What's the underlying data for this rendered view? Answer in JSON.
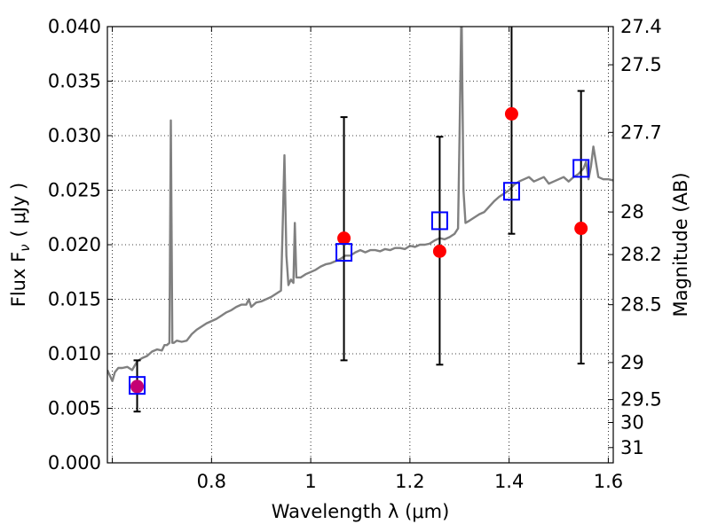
{
  "chart_data": {
    "type": "scatter",
    "xlabel": "Wavelength  λ (μm)",
    "ylabel": "Flux  F",
    "ylabel_sub": "ν",
    "ylabel_unit": "( μJy )",
    "y2label": "Magnitude (AB)",
    "xlim": [
      0.59,
      1.61
    ],
    "ylim": [
      0.0,
      0.04
    ],
    "grid": true,
    "x_ticks": [
      {
        "value": 0.6,
        "label": ""
      },
      {
        "value": 0.8,
        "label": "0.8"
      },
      {
        "value": 1.0,
        "label": "1"
      },
      {
        "value": 1.2,
        "label": "1.2"
      },
      {
        "value": 1.4,
        "label": "1.4"
      },
      {
        "value": 1.6,
        "label": "1.6"
      }
    ],
    "y_ticks": [
      {
        "value": 0.0,
        "label": "0.000"
      },
      {
        "value": 0.005,
        "label": "0.005"
      },
      {
        "value": 0.01,
        "label": "0.010"
      },
      {
        "value": 0.015,
        "label": "0.015"
      },
      {
        "value": 0.02,
        "label": "0.020"
      },
      {
        "value": 0.025,
        "label": "0.025"
      },
      {
        "value": 0.03,
        "label": "0.030"
      },
      {
        "value": 0.035,
        "label": "0.035"
      },
      {
        "value": 0.04,
        "label": "0.040"
      }
    ],
    "y2_ticks": [
      {
        "flux": 0.04,
        "label": "27.4"
      },
      {
        "flux": 0.0365,
        "label": "27.5"
      },
      {
        "flux": 0.0303,
        "label": "27.7"
      },
      {
        "flux": 0.023,
        "label": "28"
      },
      {
        "flux": 0.0191,
        "label": "28.2"
      },
      {
        "flux": 0.0145,
        "label": "28.5"
      },
      {
        "flux": 0.0092,
        "label": "29"
      },
      {
        "flux": 0.0058,
        "label": "29.5"
      },
      {
        "flux": 0.0037,
        "label": "30"
      },
      {
        "flux": 0.0014,
        "label": "31"
      }
    ],
    "series": [
      {
        "name": "model spectrum",
        "kind": "line",
        "color": "#808080",
        "x": [
          0.59,
          0.6,
          0.605,
          0.612,
          0.62,
          0.63,
          0.64,
          0.65,
          0.66,
          0.67,
          0.68,
          0.69,
          0.7,
          0.705,
          0.71,
          0.715,
          0.718,
          0.721,
          0.724,
          0.73,
          0.74,
          0.75,
          0.76,
          0.77,
          0.78,
          0.79,
          0.8,
          0.81,
          0.82,
          0.83,
          0.84,
          0.85,
          0.86,
          0.87,
          0.875,
          0.88,
          0.89,
          0.9,
          0.91,
          0.92,
          0.93,
          0.94,
          0.943,
          0.947,
          0.951,
          0.955,
          0.96,
          0.965,
          0.968,
          0.971,
          0.975,
          0.98,
          0.99,
          1.0,
          1.01,
          1.02,
          1.03,
          1.04,
          1.05,
          1.06,
          1.07,
          1.08,
          1.09,
          1.1,
          1.11,
          1.12,
          1.13,
          1.14,
          1.15,
          1.16,
          1.17,
          1.18,
          1.19,
          1.2,
          1.21,
          1.22,
          1.23,
          1.24,
          1.25,
          1.26,
          1.27,
          1.28,
          1.29,
          1.297,
          1.3,
          1.304,
          1.308,
          1.312,
          1.32,
          1.33,
          1.34,
          1.35,
          1.36,
          1.37,
          1.38,
          1.39,
          1.4,
          1.41,
          1.42,
          1.43,
          1.44,
          1.45,
          1.46,
          1.47,
          1.48,
          1.49,
          1.5,
          1.51,
          1.52,
          1.53,
          1.54,
          1.55,
          1.555,
          1.56,
          1.565,
          1.57,
          1.58,
          1.59,
          1.6,
          1.61
        ],
        "y": [
          0.0085,
          0.0075,
          0.0083,
          0.0087,
          0.0087,
          0.0088,
          0.0085,
          0.0093,
          0.0096,
          0.0098,
          0.0102,
          0.0104,
          0.0103,
          0.0108,
          0.0108,
          0.011,
          0.0314,
          0.011,
          0.011,
          0.0112,
          0.0111,
          0.0112,
          0.0118,
          0.0122,
          0.0125,
          0.0128,
          0.013,
          0.0132,
          0.0135,
          0.0138,
          0.014,
          0.0143,
          0.0145,
          0.0145,
          0.015,
          0.0143,
          0.0147,
          0.0148,
          0.015,
          0.0152,
          0.0155,
          0.0158,
          0.021,
          0.0282,
          0.019,
          0.0163,
          0.0168,
          0.0165,
          0.022,
          0.017,
          0.017,
          0.017,
          0.0173,
          0.0175,
          0.0177,
          0.018,
          0.0182,
          0.0183,
          0.0185,
          0.0187,
          0.019,
          0.019,
          0.0193,
          0.0195,
          0.0193,
          0.0195,
          0.0195,
          0.0194,
          0.0196,
          0.0195,
          0.0197,
          0.0197,
          0.0196,
          0.0199,
          0.0198,
          0.02,
          0.02,
          0.0201,
          0.0204,
          0.0206,
          0.0205,
          0.0207,
          0.021,
          0.0215,
          0.03,
          0.042,
          0.025,
          0.022,
          0.0222,
          0.0225,
          0.0228,
          0.023,
          0.0235,
          0.024,
          0.0244,
          0.0247,
          0.025,
          0.0255,
          0.0258,
          0.026,
          0.0262,
          0.0258,
          0.026,
          0.0262,
          0.0256,
          0.0258,
          0.026,
          0.0262,
          0.0258,
          0.0262,
          0.0265,
          0.027,
          0.0276,
          0.026,
          0.0272,
          0.029,
          0.0262,
          0.026,
          0.026,
          0.0259
        ]
      },
      {
        "name": "observed flux",
        "kind": "points",
        "color": "#ff0000",
        "x": [
          0.65,
          1.067,
          1.26,
          1.405,
          1.545
        ],
        "y": [
          0.007,
          0.0206,
          0.0194,
          0.032,
          0.0215
        ]
      },
      {
        "name": "model photometry",
        "kind": "open-squares",
        "color": "#0000ff",
        "x": [
          0.65,
          1.067,
          1.26,
          1.405,
          1.545
        ],
        "y": [
          0.0071,
          0.0193,
          0.0222,
          0.0249,
          0.027
        ]
      },
      {
        "name": "flux uncertainty",
        "kind": "errorbars",
        "color": "#000000",
        "x": [
          0.65,
          1.067,
          1.26,
          1.405,
          1.545
        ],
        "y_low": [
          0.0047,
          0.0094,
          0.009,
          0.021,
          0.0091
        ],
        "y_high": [
          0.0094,
          0.0317,
          0.0299,
          0.041,
          0.0341
        ]
      }
    ]
  }
}
